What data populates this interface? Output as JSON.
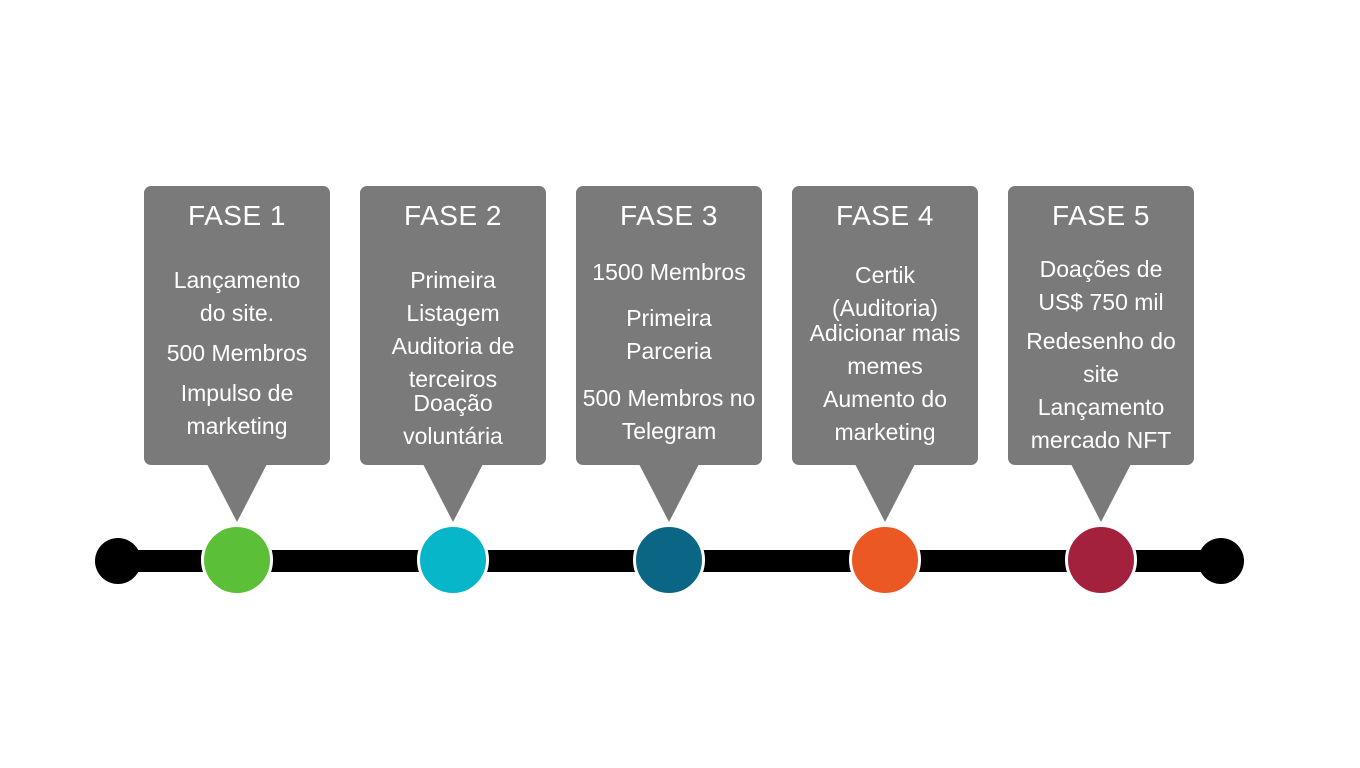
{
  "phases": [
    {
      "title": "FASE 1",
      "color": "#5cbf38",
      "items": [
        "Lançamento",
        "do site.",
        "500 Membros",
        "Impulso de",
        "marketing"
      ]
    },
    {
      "title": "FASE 2",
      "color": "#07b6c8",
      "items": [
        "Primeira",
        "Listagem",
        "Auditoria de",
        "terceiros",
        "Doação",
        "voluntária"
      ]
    },
    {
      "title": "FASE 3",
      "color": "#0b6584",
      "items": [
        "1500 Membros",
        "Primeira Parceria",
        "500 Membros no",
        "Telegram"
      ]
    },
    {
      "title": "FASE 4",
      "color": "#ec5824",
      "items": [
        "Certik",
        "(Auditoria)",
        "Adicionar mais",
        "memes",
        "Aumento do",
        "marketing"
      ]
    },
    {
      "title": "FASE 5",
      "color": "#a3213d",
      "items": [
        "Doações de",
        "US$ 750 mil",
        "Redesenho do",
        "site",
        "Lançamento",
        "mercado NFT"
      ]
    }
  ],
  "colors": {
    "card": "#7a7a7a",
    "line": "#000000"
  }
}
